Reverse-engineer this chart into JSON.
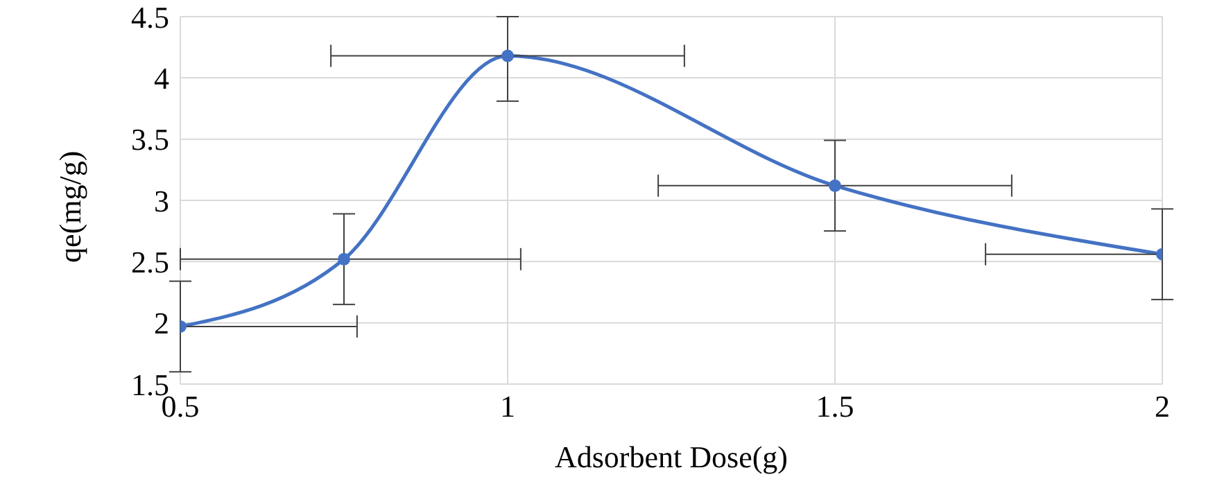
{
  "chart_data": {
    "type": "line",
    "xlabel": "Adsorbent Dose(g)",
    "ylabel": "qe(mg/g)",
    "x": [
      0.5,
      0.75,
      1,
      1.5,
      2
    ],
    "series": [
      {
        "color": "#4472c4",
        "values": [
          1.97,
          2.52,
          4.18,
          3.12,
          2.56
        ],
        "errors": [
          0.37,
          0.37,
          [
            3.81,
            4.5
          ],
          0.37,
          0.37
        ],
        "xerrors": [
          [
            0.5,
            0.77
          ],
          [
            0.5,
            1.02
          ],
          0.27,
          0.27,
          [
            1.73,
            2
          ]
        ]
      }
    ],
    "xlim": [
      0.5,
      2
    ],
    "xticks": [
      0.5,
      1,
      1.5,
      2
    ],
    "ylim": [
      1.5,
      4.5
    ],
    "yticks": [
      1.5,
      2,
      2.5,
      3,
      3.5,
      4,
      4.5
    ],
    "grid": true,
    "marker": "circle",
    "line_style": "solid"
  }
}
